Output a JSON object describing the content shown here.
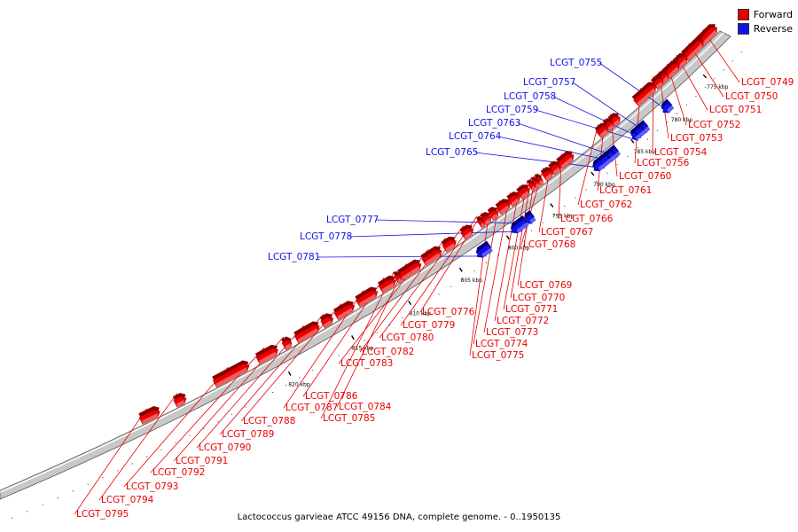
{
  "legend": {
    "forward": {
      "label": "Forward",
      "color": "#e80000"
    },
    "reverse": {
      "label": "Reverse",
      "color": "#1010e8"
    }
  },
  "caption": "Lactococcus garvieae ATCC 49156 DNA, complete genome. - 0..1950135",
  "scale_ticks": [
    "775 kbp",
    "780 kbp",
    "785 kbp",
    "790 kbp",
    "795 kbp",
    "800 kbp",
    "805 kbp",
    "810 kbp",
    "815 kbp",
    "820 kbp"
  ],
  "genes": [
    {
      "id": "LCGT_0749",
      "strand": "forward"
    },
    {
      "id": "LCGT_0750",
      "strand": "forward"
    },
    {
      "id": "LCGT_0751",
      "strand": "forward"
    },
    {
      "id": "LCGT_0752",
      "strand": "forward"
    },
    {
      "id": "LCGT_0753",
      "strand": "forward"
    },
    {
      "id": "LCGT_0754",
      "strand": "forward"
    },
    {
      "id": "LCGT_0755",
      "strand": "reverse"
    },
    {
      "id": "LCGT_0756",
      "strand": "forward"
    },
    {
      "id": "LCGT_0757",
      "strand": "reverse"
    },
    {
      "id": "LCGT_0758",
      "strand": "reverse"
    },
    {
      "id": "LCGT_0759",
      "strand": "reverse"
    },
    {
      "id": "LCGT_0760",
      "strand": "forward"
    },
    {
      "id": "LCGT_0761",
      "strand": "forward"
    },
    {
      "id": "LCGT_0762",
      "strand": "forward"
    },
    {
      "id": "LCGT_0763",
      "strand": "reverse"
    },
    {
      "id": "LCGT_0764",
      "strand": "reverse"
    },
    {
      "id": "LCGT_0765",
      "strand": "reverse"
    },
    {
      "id": "LCGT_0766",
      "strand": "forward"
    },
    {
      "id": "LCGT_0767",
      "strand": "forward"
    },
    {
      "id": "LCGT_0768",
      "strand": "forward"
    },
    {
      "id": "LCGT_0769",
      "strand": "forward"
    },
    {
      "id": "LCGT_0770",
      "strand": "forward"
    },
    {
      "id": "LCGT_0771",
      "strand": "forward"
    },
    {
      "id": "LCGT_0772",
      "strand": "forward"
    },
    {
      "id": "LCGT_0773",
      "strand": "forward"
    },
    {
      "id": "LCGT_0774",
      "strand": "forward"
    },
    {
      "id": "LCGT_0775",
      "strand": "forward"
    },
    {
      "id": "LCGT_0776",
      "strand": "forward"
    },
    {
      "id": "LCGT_0777",
      "strand": "reverse"
    },
    {
      "id": "LCGT_0778",
      "strand": "reverse"
    },
    {
      "id": "LCGT_0779",
      "strand": "forward"
    },
    {
      "id": "LCGT_0780",
      "strand": "forward"
    },
    {
      "id": "LCGT_0781",
      "strand": "reverse"
    },
    {
      "id": "LCGT_0782",
      "strand": "forward"
    },
    {
      "id": "LCGT_0783",
      "strand": "forward"
    },
    {
      "id": "LCGT_0784",
      "strand": "forward"
    },
    {
      "id": "LCGT_0785",
      "strand": "forward"
    },
    {
      "id": "LCGT_0786",
      "strand": "forward"
    },
    {
      "id": "LCGT_0787",
      "strand": "forward"
    },
    {
      "id": "LCGT_0788",
      "strand": "forward"
    },
    {
      "id": "LCGT_0789",
      "strand": "forward"
    },
    {
      "id": "LCGT_0790",
      "strand": "forward"
    },
    {
      "id": "LCGT_0791",
      "strand": "forward"
    },
    {
      "id": "LCGT_0792",
      "strand": "forward"
    },
    {
      "id": "LCGT_0793",
      "strand": "forward"
    },
    {
      "id": "LCGT_0794",
      "strand": "forward"
    },
    {
      "id": "LCGT_0795",
      "strand": "forward"
    }
  ]
}
